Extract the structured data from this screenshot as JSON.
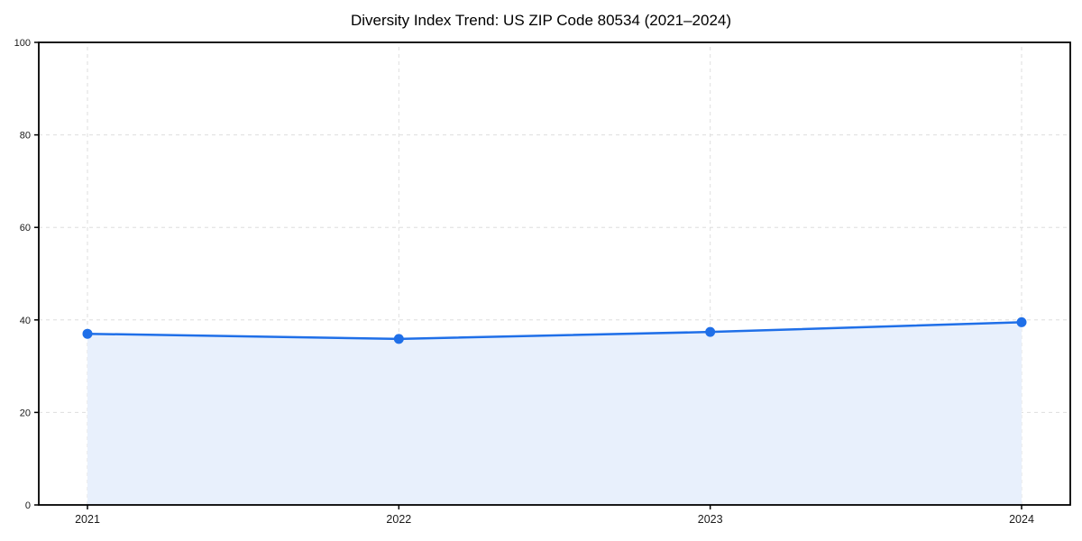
{
  "chart": {
    "colors": {
      "line": "#1f6fe8",
      "marker": "#1f6fe8",
      "fill": "#e8f0fc",
      "grid": "#dedede",
      "axis": "#000000",
      "tick_label": "#1a1a1a",
      "background": "#ffffff"
    }
  },
  "chart_data": {
    "type": "area",
    "title": "Diversity Index Trend: US ZIP Code 80534 (2021–2024)",
    "categories": [
      "2021",
      "2022",
      "2023",
      "2024"
    ],
    "x": [
      2021,
      2022,
      2023,
      2024
    ],
    "series": [
      {
        "name": "Diversity Index",
        "values": [
          37.0,
          35.9,
          37.4,
          39.5
        ]
      }
    ],
    "xlabel": "",
    "ylabel": "",
    "ylim": [
      0,
      100
    ],
    "yticks": [
      0,
      20,
      40,
      60,
      80,
      100
    ],
    "grid": true,
    "grid_style": "dashed",
    "legend": "none",
    "marker": "circle",
    "area_fill": true
  }
}
